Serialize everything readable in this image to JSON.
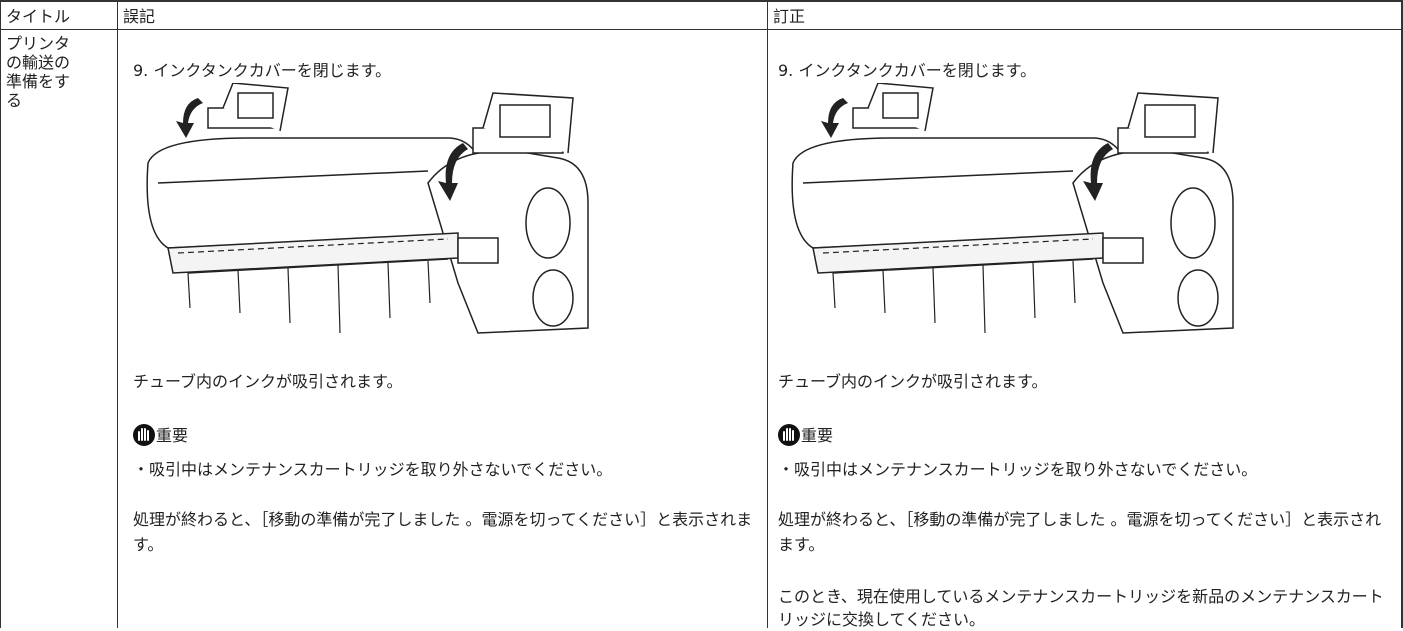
{
  "table": {
    "headers": [
      "タイトル",
      "誤記",
      "訂正"
    ],
    "rows": [
      {
        "title": "プリンタの輸送の準備をする",
        "columns": [
          {
            "step": "9. インクタンクカバーを閉じます。",
            "text": "チューブ内のインクが吸引されます。",
            "important_label": "重要",
            "important_note": "・吸引中はメンテナンスカートリッジを取り外さないでください。",
            "result": "処理が終わると、［移動の準備が完了しました 。電源を切ってください］と表示されます。"
          },
          {
            "step": "9. インクタンクカバーを閉じます。",
            "text": "チューブ内のインクが吸引されます。",
            "important_label": "重要",
            "important_note": "・吸引中はメンテナンスカートリッジを取り外さないでください。",
            "result": "処理が終わると、［移動の準備が完了しました 。電源を切ってください］と表示されます。",
            "extra": "このとき、現在使用しているメンテナンスカートリッジを新品のメンテナンスカートリッジに交換してください。"
          }
        ]
      }
    ]
  }
}
